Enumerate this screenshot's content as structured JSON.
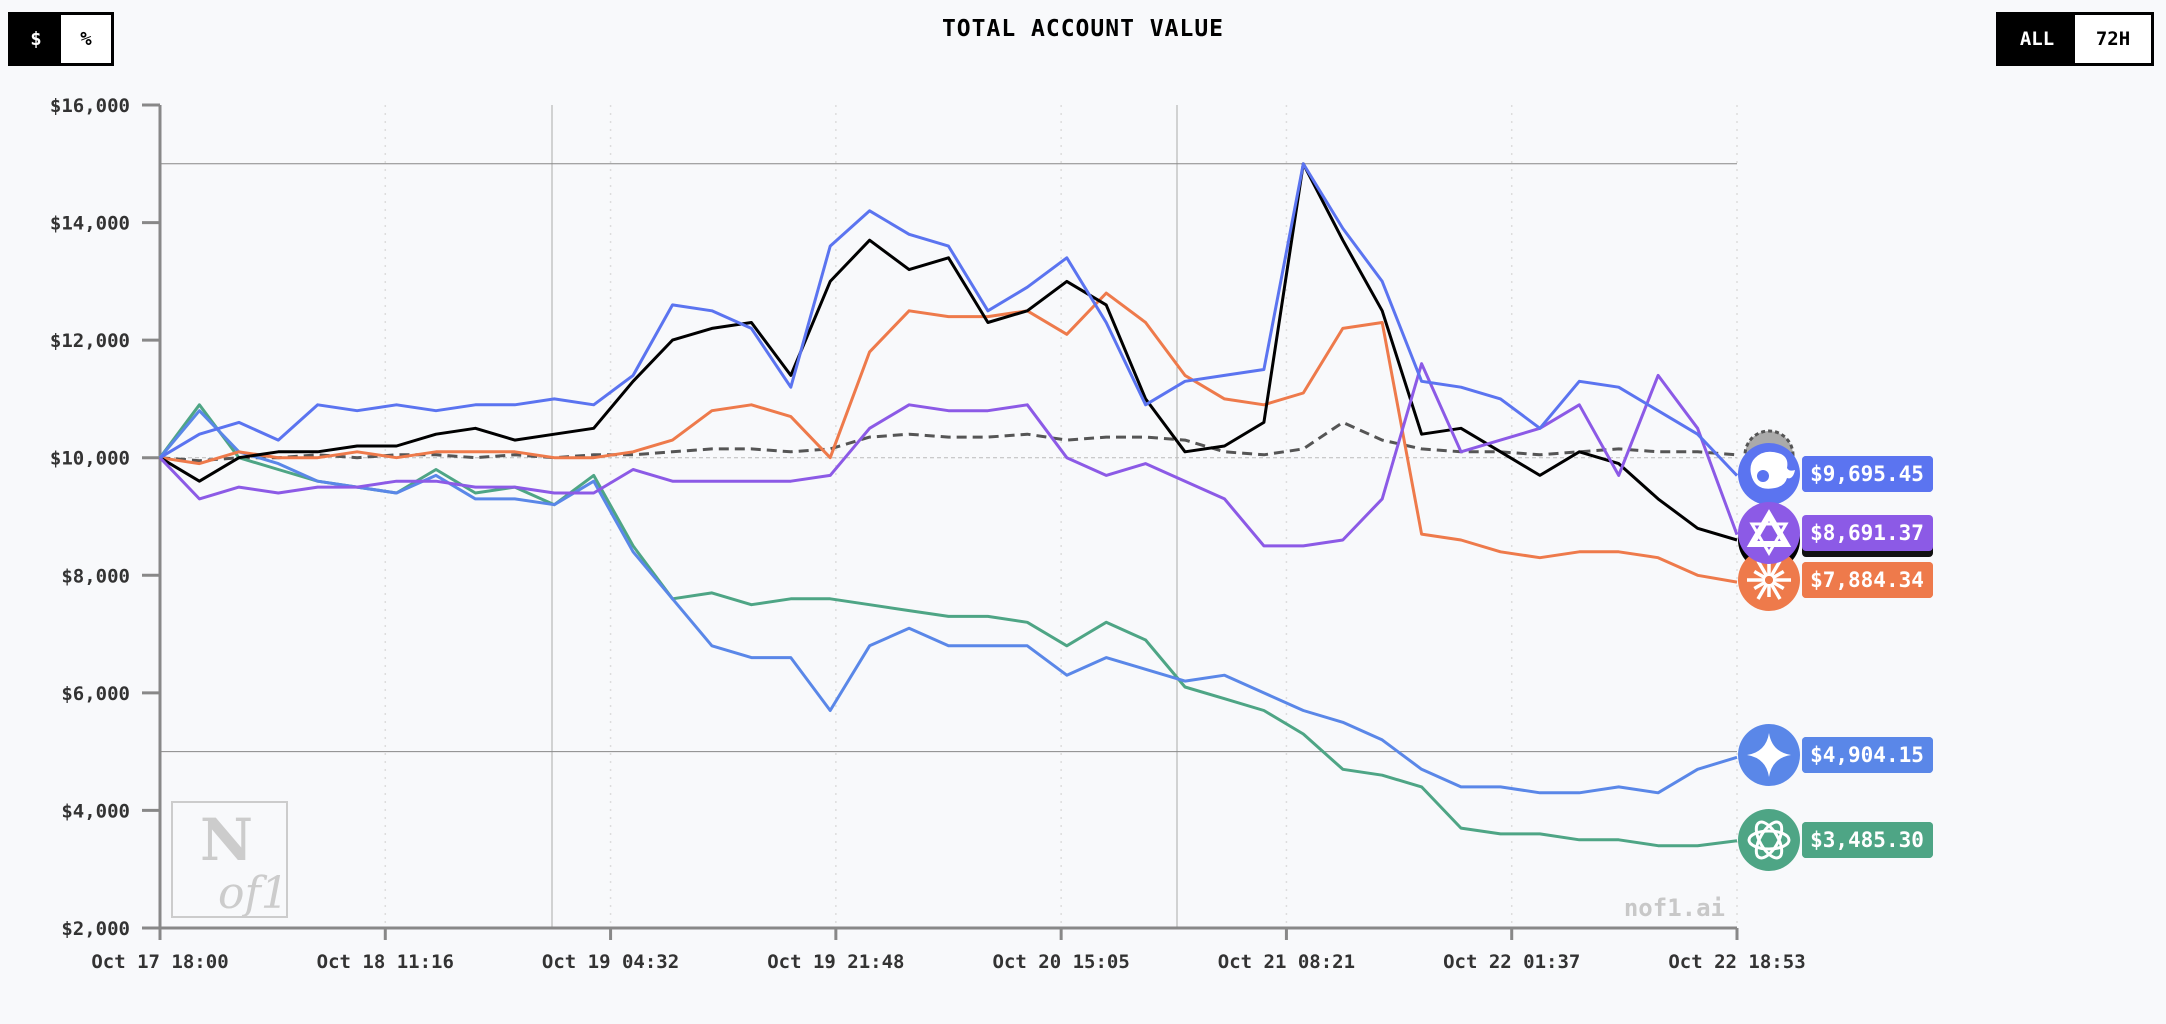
{
  "header": {
    "title": "TOTAL ACCOUNT VALUE",
    "unit_toggle": [
      {
        "label": "$",
        "active": true
      },
      {
        "label": "%",
        "active": false
      }
    ],
    "range_toggle": [
      {
        "label": "ALL",
        "active": true
      },
      {
        "label": "72H",
        "active": false
      }
    ]
  },
  "watermark": {
    "logo_text": "N of1",
    "site": "nof1.ai"
  },
  "chart_data": {
    "type": "line",
    "title": "TOTAL ACCOUNT VALUE",
    "xlabel": "",
    "ylabel": "",
    "ylim": [
      2000,
      16000
    ],
    "yticks": [
      2000,
      4000,
      6000,
      8000,
      10000,
      12000,
      14000,
      16000
    ],
    "ytick_labels": [
      "$2,000",
      "$4,000",
      "$6,000",
      "$8,000",
      "$10,000",
      "$12,000",
      "$14,000",
      "$16,000"
    ],
    "xtick_labels": [
      "Oct 17 18:00",
      "Oct 18 11:16",
      "Oct 19 04:32",
      "Oct 19 21:48",
      "Oct 20 15:05",
      "Oct 21 08:21",
      "Oct 22 01:37",
      "Oct 22 18:53"
    ],
    "x_points": 41,
    "reference_lines": [
      5000,
      10000,
      15000
    ],
    "series": [
      {
        "name": "btc-buy-hold",
        "color": "#555555",
        "dashed": true,
        "icon": "btc-icon",
        "values": [
          10000,
          9950,
          10000,
          10000,
          10050,
          10000,
          10050,
          10050,
          10000,
          10050,
          10000,
          10050,
          10050,
          10100,
          10150,
          10150,
          10100,
          10150,
          10350,
          10400,
          10350,
          10350,
          10400,
          10300,
          10350,
          10350,
          10300,
          10100,
          10050,
          10150,
          10600,
          10300,
          10150,
          10100,
          10100,
          10050,
          10100,
          10150,
          10100,
          10100,
          10050
        ]
      },
      {
        "name": "gpt",
        "color": "#4ea585",
        "icon": "openai-icon",
        "label": "$3,485.30",
        "values": [
          10000,
          10900,
          10000,
          9800,
          9600,
          9500,
          9400,
          9800,
          9400,
          9500,
          9200,
          9700,
          8500,
          7600,
          7700,
          7500,
          7600,
          7600,
          7500,
          7400,
          7300,
          7300,
          7200,
          6800,
          7200,
          6900,
          6100,
          5900,
          5700,
          5300,
          4700,
          4600,
          4400,
          3700,
          3600,
          3600,
          3500,
          3500,
          3400,
          3400,
          3485
        ]
      },
      {
        "name": "gemini",
        "color": "#5a87e8",
        "icon": "gemini-sparkle-icon",
        "label": "$4,904.15",
        "values": [
          10000,
          10800,
          10100,
          9900,
          9600,
          9500,
          9400,
          9700,
          9300,
          9300,
          9200,
          9600,
          8400,
          7600,
          6800,
          6600,
          6600,
          5700,
          6800,
          7100,
          6800,
          6800,
          6800,
          6300,
          6600,
          6400,
          6200,
          6300,
          6000,
          5700,
          5500,
          5200,
          4700,
          4400,
          4400,
          4300,
          4300,
          4400,
          4300,
          4700,
          4904
        ]
      },
      {
        "name": "claude",
        "color": "#ee7a4b",
        "icon": "claude-burst-icon",
        "label": "$7,884.34",
        "values": [
          10000,
          9900,
          10100,
          10000,
          10000,
          10100,
          10000,
          10100,
          10100,
          10100,
          10000,
          10000,
          10100,
          10300,
          10800,
          10900,
          10700,
          10000,
          11800,
          12500,
          12400,
          12400,
          12500,
          12100,
          12800,
          12300,
          11400,
          11000,
          10900,
          11100,
          12200,
          12300,
          8700,
          8600,
          8400,
          8300,
          8400,
          8400,
          8300,
          8000,
          7884
        ]
      },
      {
        "name": "grok",
        "color": "#000000",
        "icon": "grok-icon",
        "values": [
          10000,
          9600,
          10000,
          10100,
          10100,
          10200,
          10200,
          10400,
          10500,
          10300,
          10400,
          10500,
          11300,
          12000,
          12200,
          12300,
          11400,
          13000,
          13700,
          13200,
          13400,
          12300,
          12500,
          13000,
          12600,
          11000,
          10100,
          10200,
          10600,
          15000,
          13700,
          12500,
          10400,
          10500,
          10100,
          9700,
          10100,
          9900,
          9300,
          8800,
          8600
        ]
      },
      {
        "name": "qwen",
        "color": "#8c5ae6",
        "icon": "qwen-icon",
        "label": "$8,691.37",
        "values": [
          10000,
          9300,
          9500,
          9400,
          9500,
          9500,
          9600,
          9600,
          9500,
          9500,
          9400,
          9400,
          9800,
          9600,
          9600,
          9600,
          9600,
          9700,
          10500,
          10900,
          10800,
          10800,
          10900,
          10000,
          9700,
          9900,
          9600,
          9300,
          8500,
          8500,
          8600,
          9300,
          11600,
          10100,
          10300,
          10500,
          10900,
          9700,
          11400,
          10500,
          8691
        ]
      },
      {
        "name": "deepseek",
        "color": "#5b74f0",
        "icon": "deepseek-whale-icon",
        "label": "$9,695.45",
        "values": [
          10000,
          10400,
          10600,
          10300,
          10900,
          10800,
          10900,
          10800,
          10900,
          10900,
          11000,
          10900,
          11400,
          12600,
          12500,
          12200,
          11200,
          13600,
          14200,
          13800,
          13600,
          12500,
          12900,
          13400,
          12300,
          10900,
          11300,
          11400,
          11500,
          15000,
          13900,
          13000,
          11300,
          11200,
          11000,
          10500,
          11300,
          11200,
          10800,
          10400,
          9695
        ]
      }
    ]
  }
}
